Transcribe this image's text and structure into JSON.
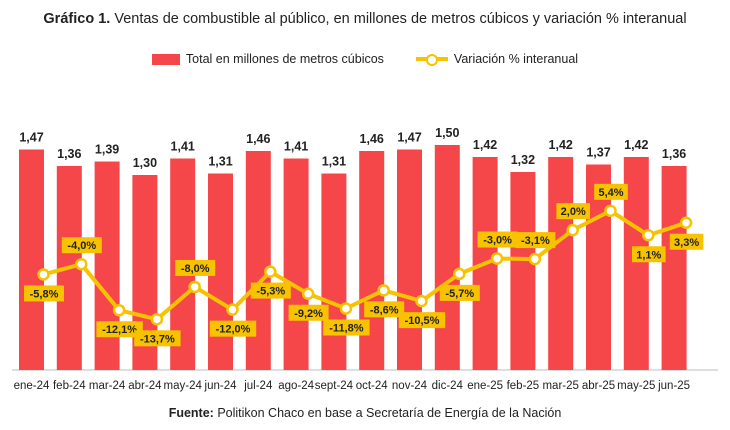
{
  "title_prefix": "Gráfico 1.",
  "title_text": "Ventas de combustible al público, en millones de metros cúbicos y variación % interanual",
  "footer_label": "Fuente:",
  "footer_text": "Politikon Chaco en base a Secretaría de Energía de la Nación",
  "colors": {
    "bar": "#f5474a",
    "line": "#f7c200",
    "label_box": "#f7c200"
  },
  "chart_data": {
    "type": "bar",
    "categories": [
      "ene-24",
      "feb-24",
      "mar-24",
      "abr-24",
      "may-24",
      "jun-24",
      "jul-24",
      "ago-24",
      "sept-24",
      "oct-24",
      "nov-24",
      "dic-24",
      "ene-25",
      "feb-25",
      "mar-25",
      "abr-25",
      "may-25",
      "jun-25"
    ],
    "series": [
      {
        "name": "Total en millones de metros cúbicos",
        "type": "bar",
        "values": [
          1.47,
          1.36,
          1.39,
          1.3,
          1.41,
          1.31,
          1.46,
          1.41,
          1.31,
          1.46,
          1.47,
          1.5,
          1.42,
          1.32,
          1.42,
          1.37,
          1.42,
          1.36
        ],
        "labels": [
          "1,47",
          "1,36",
          "1,39",
          "1,30",
          "1,41",
          "1,31",
          "1,46",
          "1,41",
          "1,31",
          "1,46",
          "1,47",
          "1,50",
          "1,42",
          "1,32",
          "1,42",
          "1,37",
          "1,42",
          "1,36"
        ]
      },
      {
        "name": "Variación % interanual",
        "type": "line",
        "values": [
          -5.8,
          -4.0,
          -12.1,
          -13.7,
          -8.0,
          -12.0,
          -5.3,
          -9.2,
          -11.8,
          -8.6,
          -10.5,
          -5.7,
          -3.0,
          -3.1,
          2.0,
          5.4,
          1.1,
          3.3
        ],
        "labels": [
          "-5,8%",
          "-4,0%",
          "-12,1%",
          "-13,7%",
          "-8,0%",
          "-12,0%",
          "-5,3%",
          "-9,2%",
          "-11,8%",
          "-8,6%",
          "-10,5%",
          "-5,7%",
          "-3,0%",
          "-3,1%",
          "2,0%",
          "5,4%",
          "1,1%",
          "3,3%"
        ],
        "label_position": [
          "below",
          "above",
          "below",
          "below",
          "above",
          "below",
          "below",
          "below",
          "below",
          "below",
          "below",
          "below",
          "above",
          "above",
          "above",
          "above",
          "below",
          "below"
        ]
      }
    ],
    "legend_position": "top-center",
    "grid": false
  }
}
